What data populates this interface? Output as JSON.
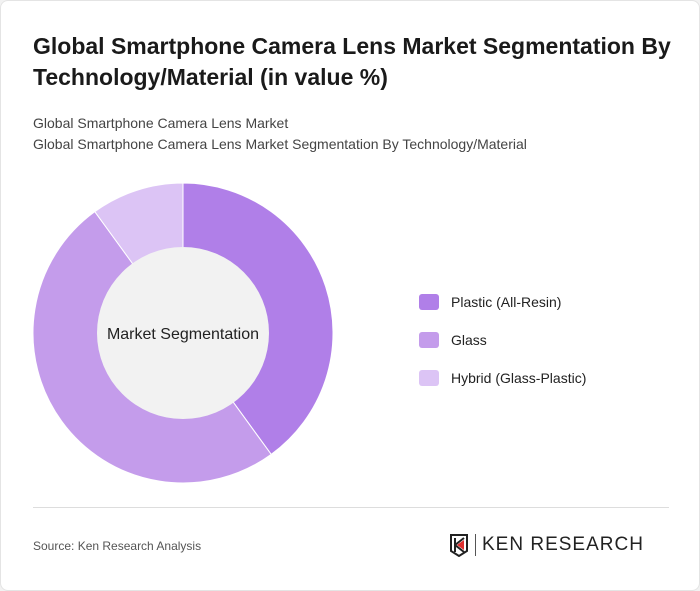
{
  "title": "Global Smartphone Camera Lens Market Segmentation By Technology/Material (in value %)",
  "subtitle1": "Global Smartphone Camera Lens Market",
  "subtitle2": "Global Smartphone Camera Lens Market Segmentation By Technology/Material",
  "source": "Source: Ken Research Analysis",
  "logo_text": "KEN RESEARCH",
  "chart_data": {
    "type": "pie",
    "donut": true,
    "center_label": "Market Segmentation",
    "categories": [
      "Plastic (All-Resin)",
      "Glass",
      "Hybrid (Glass-Plastic)"
    ],
    "values": [
      40,
      50,
      10
    ],
    "colors": [
      "#b07fe8",
      "#c49ceb",
      "#dcc4f5"
    ],
    "legend_position": "right"
  }
}
